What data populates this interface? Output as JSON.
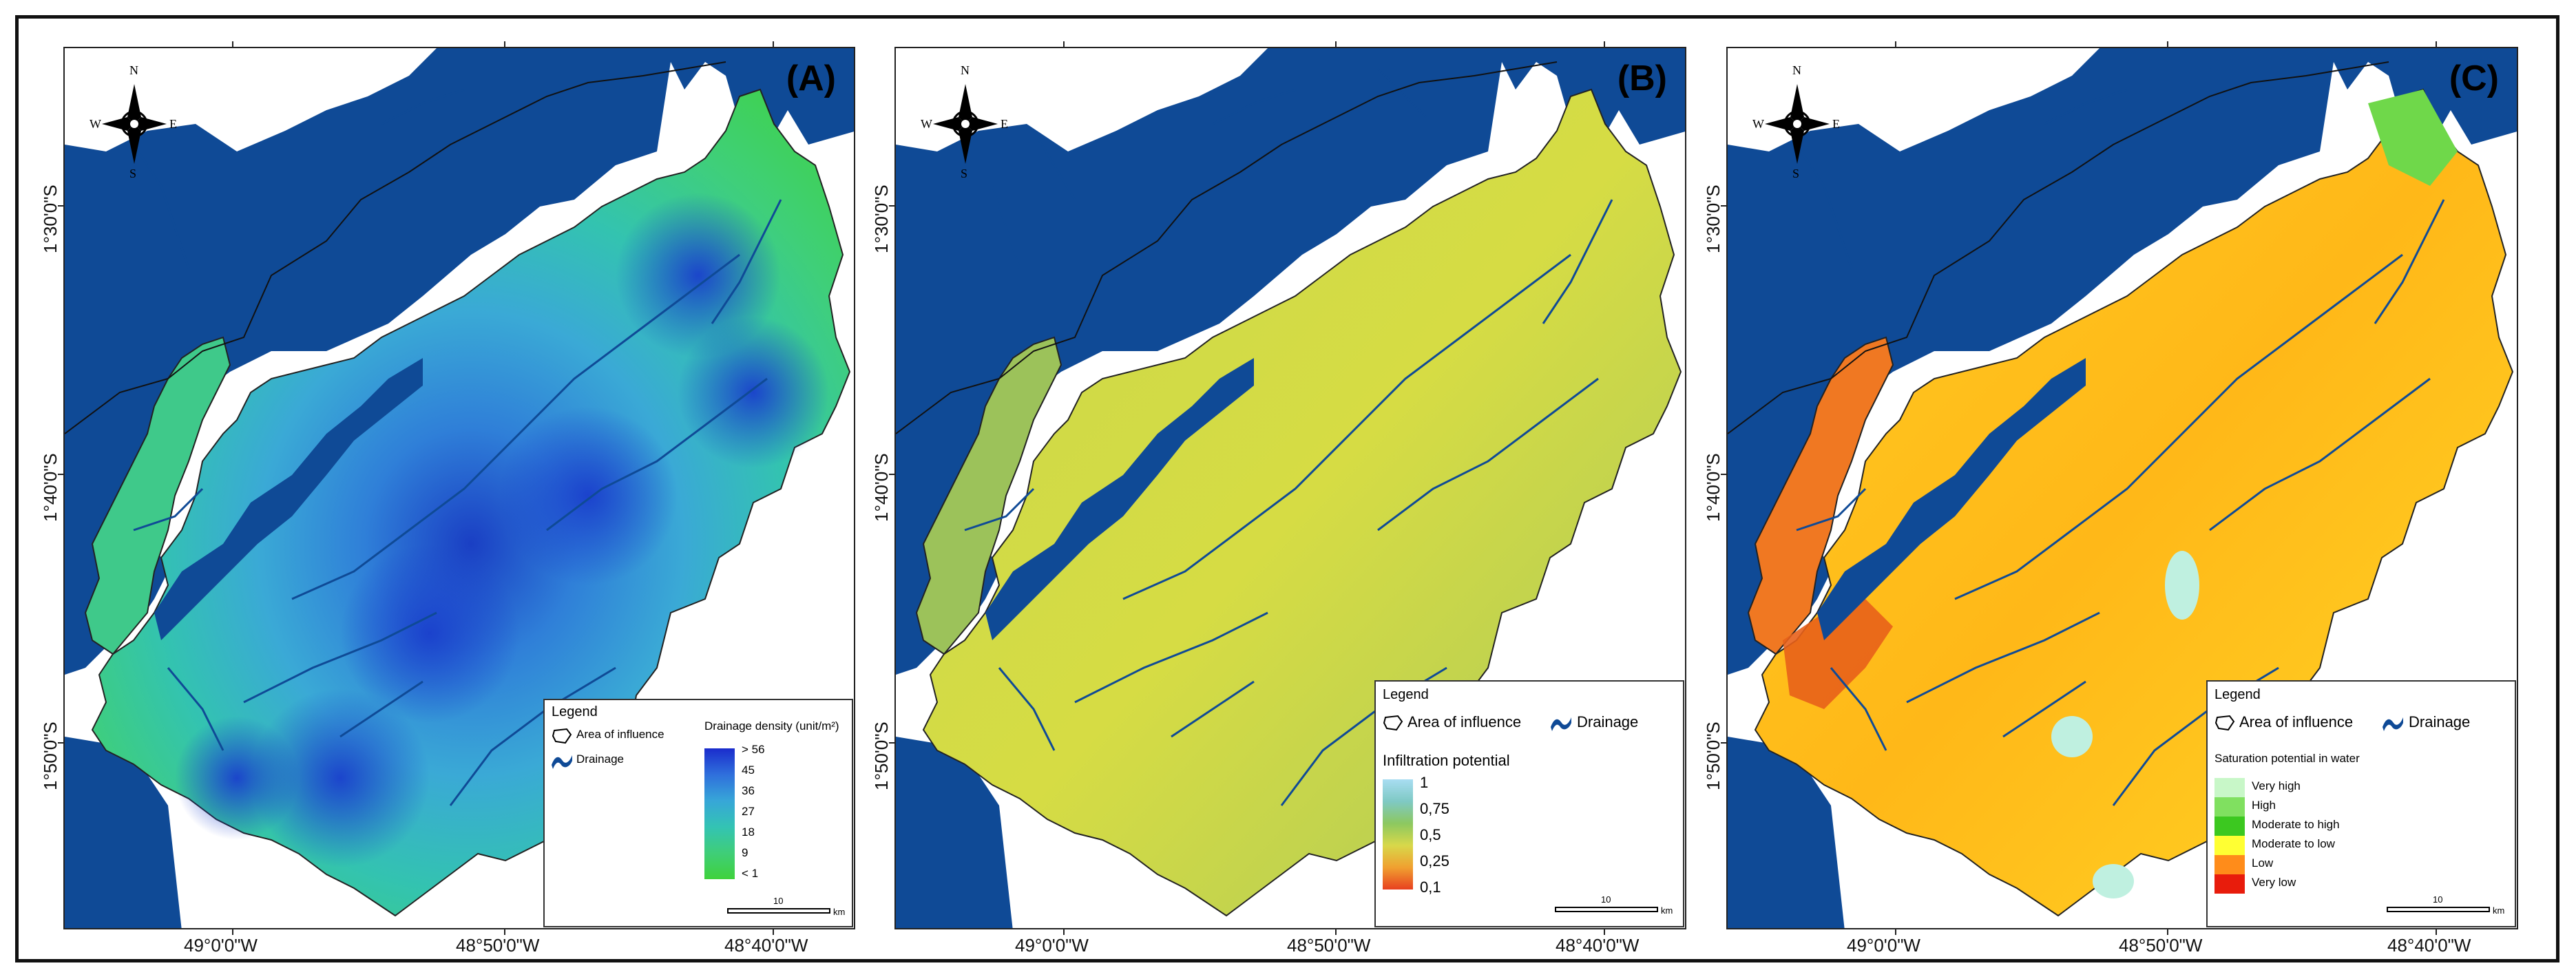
{
  "panels": [
    {
      "label": "(A)",
      "legend": {
        "title": "Legend",
        "items": [
          "Area of influence",
          "Drainage"
        ],
        "scale_title": "Drainage density (unit/m²)",
        "scale_labels": [
          "> 56",
          "45",
          "36",
          "27",
          "18",
          "9",
          "< 1"
        ]
      },
      "scale": {
        "value": "10",
        "unit": "km"
      }
    },
    {
      "label": "(B)",
      "legend": {
        "title": "Legend",
        "items": [
          "Area of influence",
          "Drainage"
        ],
        "scale_title": "Infiltration potential",
        "scale_labels": [
          "1",
          "0,75",
          "0,5",
          "0,25",
          "0,1"
        ]
      },
      "scale": {
        "value": "10",
        "unit": "km"
      }
    },
    {
      "label": "(C)",
      "legend": {
        "title": "Legend",
        "items": [
          "Area of influence",
          "Drainage"
        ],
        "scale_title": "Saturation potential in water",
        "scale_labels": [
          "Very high",
          "High",
          "Moderate to high",
          "Moderate to low",
          "Low",
          "Very low"
        ]
      },
      "scale": {
        "value": "10",
        "unit": "km"
      }
    }
  ],
  "compass": {
    "n": "N",
    "s": "S",
    "e": "E",
    "w": "W"
  },
  "lat_labels": [
    "1°30'0\"S",
    "1°40'0\"S",
    "1°50'0\"S"
  ],
  "lon_labels": [
    "49°0'0\"W",
    "48°50'0\"W",
    "48°40'0\"W"
  ],
  "colors": {
    "water": "#0f4a96",
    "land": "#ffffff",
    "density_ramp": [
      "#1a3fc4",
      "#2f7fd8",
      "#3aa9d6",
      "#33c3b0",
      "#3fcf7a",
      "#3fd24a"
    ],
    "infiltration_ramp": [
      "#9fd9f0",
      "#7fc9c0",
      "#9ccf5a",
      "#e0d84a",
      "#f0a030",
      "#e04020"
    ],
    "saturation_ramp": [
      "#c8f7c8",
      "#80e060",
      "#3cc820",
      "#ffff33",
      "#ff8c1a",
      "#e81c0c"
    ]
  }
}
